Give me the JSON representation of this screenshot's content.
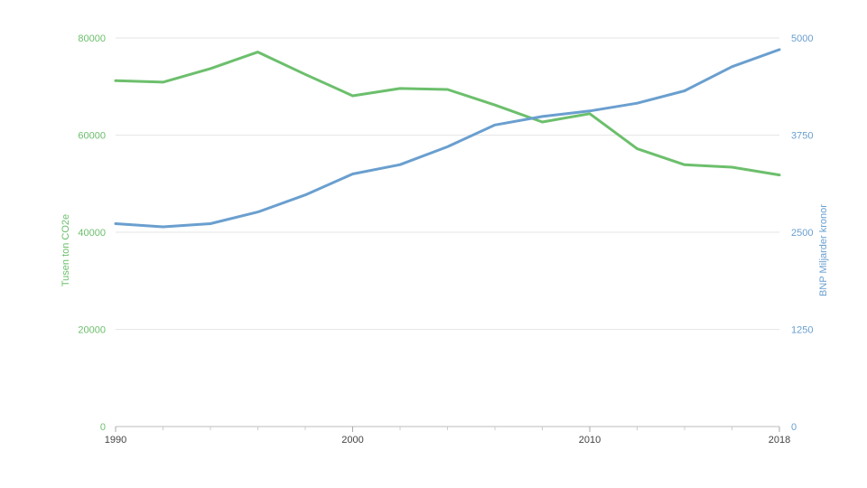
{
  "chart_data": {
    "type": "line",
    "title": "",
    "x_ticks": [
      "1990",
      "2000",
      "2010",
      "2018"
    ],
    "x_range": [
      1990,
      2018
    ],
    "x": [
      1990,
      1992,
      1994,
      1996,
      1998,
      2000,
      2002,
      2004,
      2006,
      2008,
      2010,
      2012,
      2014,
      2016,
      2018
    ],
    "y_left": {
      "label": "Tusen ton CO2e",
      "range": [
        0,
        80000
      ],
      "ticks": [
        "0",
        "20000",
        "40000",
        "60000",
        "80000"
      ],
      "color": "#6cbf6c"
    },
    "y_right": {
      "label": "BNP Miljarder kronor",
      "range": [
        0,
        5000
      ],
      "ticks": [
        "0",
        "1250",
        "2500",
        "3750",
        "5000"
      ],
      "color": "#6a9fcf"
    },
    "series": [
      {
        "axis": "left",
        "color": "#6cbf6c",
        "values": [
          71200,
          70900,
          73700,
          77100,
          72500,
          68100,
          69600,
          69400,
          66200,
          62700,
          64400,
          57200,
          53900,
          53400,
          51800
        ]
      },
      {
        "axis": "right",
        "color": "#6a9fcf",
        "values": [
          2610,
          2570,
          2610,
          2760,
          2980,
          3250,
          3370,
          3600,
          3880,
          3990,
          4060,
          4160,
          4320,
          4630,
          4850
        ]
      }
    ],
    "grid": true,
    "legend": "none"
  }
}
